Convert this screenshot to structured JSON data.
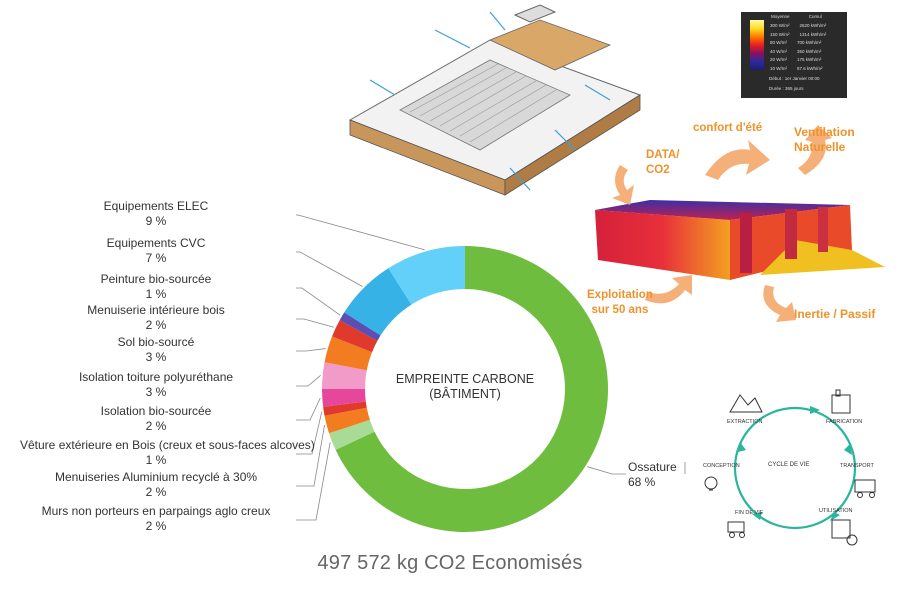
{
  "chart_data": {
    "type": "pie",
    "center_label": [
      "EMPREINTE CARBONE",
      "(BÂTIMENT)"
    ],
    "slices": [
      {
        "label": "Ossature",
        "value": 68,
        "value_text": "68 %",
        "color": "#6fbd3f"
      },
      {
        "label": "Murs non porteurs en parpaings aglo creux",
        "value": 2,
        "value_text": "2 %",
        "color": "#a8dc96"
      },
      {
        "label": "Menuiseries Aluminium recyclé à 30%",
        "value": 2,
        "value_text": "2 %",
        "color": "#f47c20"
      },
      {
        "label": "Vêture extérieure en Bois (creux et sous-faces alcoves)",
        "value": 1,
        "value_text": "1 %",
        "color": "#e03a2c"
      },
      {
        "label": "Isolation bio-sourcée",
        "value": 2,
        "value_text": "2 %",
        "color": "#e6479a"
      },
      {
        "label": "Isolation toiture polyuréthane",
        "value": 3,
        "value_text": "3 %",
        "color": "#f29ac8"
      },
      {
        "label": "Sol bio-sourcé",
        "value": 3,
        "value_text": "3 %",
        "color": "#f47c20"
      },
      {
        "label": "Menuiserie intérieure bois",
        "value": 2,
        "value_text": "2 %",
        "color": "#e03a2c"
      },
      {
        "label": "Peinture bio-sourcée",
        "value": 1,
        "value_text": "1 %",
        "color": "#5b4fb3"
      },
      {
        "label": "Equipements CVC",
        "value": 7,
        "value_text": "7 %",
        "color": "#36b2e6"
      },
      {
        "label": "Equipements ELEC",
        "value": 9,
        "value_text": "9 %",
        "color": "#62d0f8"
      }
    ]
  },
  "summary": "497 572 kg CO2 Economisés",
  "diagram": {
    "data_co2": [
      "DATA/",
      "CO2"
    ],
    "confort": "confort d'été",
    "ventilation": [
      "Ventilation",
      "Naturelle"
    ],
    "exploitation": [
      "Exploitation",
      "sur 50 ans"
    ],
    "inertie": "Inertie / Passif"
  },
  "legend": {
    "header": [
      "Moyenne",
      "Cumul"
    ],
    "rows": [
      {
        "avg": "300 W/m²",
        "cum": "2620 kWh/m²"
      },
      {
        "avg": "150 W/m²",
        "cum": "1314 kWh/m²"
      },
      {
        "avg": "80 W/m²",
        "cum": "700 kWh/m²"
      },
      {
        "avg": "40 W/m²",
        "cum": "350 kWh/m²"
      },
      {
        "avg": "20 W/m²",
        "cum": "175 kWh/m²"
      },
      {
        "avg": "10 W/m²",
        "cum": "87.6 kWh/m²"
      }
    ],
    "debut": "Début : 1er Janvier 00:00",
    "duree": "Durée : 365 jours"
  },
  "cycle": {
    "title": "CYCLE DE VIE",
    "steps": [
      "EXTRACTION",
      "FABRICATION",
      "TRANSPORT",
      "UTILISATION",
      "FIN DE VIE",
      "CONCEPTION"
    ]
  },
  "colors": {
    "accent": "#f0922a",
    "arrow": "#f5b07a",
    "cycle": "#2bb59a"
  }
}
